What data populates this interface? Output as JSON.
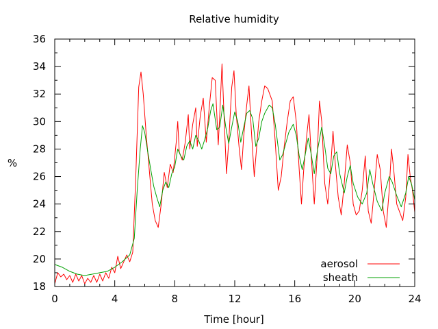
{
  "chart_data": {
    "type": "line",
    "title": "Relative humidity",
    "xlabel": "Time [hour]",
    "ylabel": "%",
    "xlim": [
      0,
      24
    ],
    "ylim": [
      18,
      36
    ],
    "x_ticks": [
      0,
      4,
      8,
      12,
      16,
      20,
      24
    ],
    "y_ticks": [
      18,
      20,
      22,
      24,
      26,
      28,
      30,
      32,
      34,
      36
    ],
    "grid": false,
    "legend_position": "bottom-right",
    "series": [
      {
        "name": "aerosol",
        "color": "#ff0000",
        "points": [
          [
            0.0,
            18.2
          ],
          [
            0.2,
            19.0
          ],
          [
            0.4,
            18.7
          ],
          [
            0.6,
            18.9
          ],
          [
            0.8,
            18.5
          ],
          [
            1.0,
            18.8
          ],
          [
            1.2,
            18.3
          ],
          [
            1.4,
            18.9
          ],
          [
            1.6,
            18.4
          ],
          [
            1.8,
            18.8
          ],
          [
            2.0,
            18.2
          ],
          [
            2.2,
            18.6
          ],
          [
            2.4,
            18.3
          ],
          [
            2.6,
            18.8
          ],
          [
            2.8,
            18.3
          ],
          [
            3.0,
            18.9
          ],
          [
            3.2,
            18.4
          ],
          [
            3.4,
            19.0
          ],
          [
            3.6,
            18.6
          ],
          [
            3.8,
            19.4
          ],
          [
            4.0,
            19.0
          ],
          [
            4.2,
            20.2
          ],
          [
            4.4,
            19.3
          ],
          [
            4.6,
            19.8
          ],
          [
            4.8,
            20.3
          ],
          [
            5.0,
            19.8
          ],
          [
            5.2,
            20.5
          ],
          [
            5.4,
            26.0
          ],
          [
            5.6,
            32.5
          ],
          [
            5.75,
            33.6
          ],
          [
            5.9,
            32.0
          ],
          [
            6.1,
            29.0
          ],
          [
            6.3,
            26.5
          ],
          [
            6.5,
            24.0
          ],
          [
            6.7,
            22.8
          ],
          [
            6.9,
            22.3
          ],
          [
            7.1,
            24.0
          ],
          [
            7.3,
            26.3
          ],
          [
            7.5,
            25.2
          ],
          [
            7.7,
            26.9
          ],
          [
            7.9,
            26.3
          ],
          [
            8.1,
            28.5
          ],
          [
            8.2,
            30.0
          ],
          [
            8.3,
            27.8
          ],
          [
            8.5,
            27.2
          ],
          [
            8.7,
            28.5
          ],
          [
            8.9,
            30.5
          ],
          [
            9.0,
            28.0
          ],
          [
            9.2,
            29.8
          ],
          [
            9.4,
            31.0
          ],
          [
            9.5,
            28.2
          ],
          [
            9.7,
            30.4
          ],
          [
            9.9,
            31.7
          ],
          [
            10.1,
            28.5
          ],
          [
            10.3,
            31.0
          ],
          [
            10.5,
            33.2
          ],
          [
            10.7,
            33.0
          ],
          [
            10.9,
            28.3
          ],
          [
            11.0,
            30.5
          ],
          [
            11.15,
            34.2
          ],
          [
            11.3,
            30.0
          ],
          [
            11.45,
            26.2
          ],
          [
            11.6,
            28.5
          ],
          [
            11.8,
            32.5
          ],
          [
            11.95,
            33.7
          ],
          [
            12.1,
            30.5
          ],
          [
            12.3,
            28.0
          ],
          [
            12.45,
            26.5
          ],
          [
            12.6,
            29.0
          ],
          [
            12.8,
            31.2
          ],
          [
            12.95,
            32.6
          ],
          [
            13.1,
            29.5
          ],
          [
            13.3,
            26.0
          ],
          [
            13.45,
            28.0
          ],
          [
            13.6,
            30.0
          ],
          [
            13.8,
            31.5
          ],
          [
            14.0,
            32.6
          ],
          [
            14.2,
            32.4
          ],
          [
            14.5,
            31.5
          ],
          [
            14.7,
            28.5
          ],
          [
            14.9,
            25.0
          ],
          [
            15.1,
            26.0
          ],
          [
            15.3,
            28.2
          ],
          [
            15.5,
            30.0
          ],
          [
            15.7,
            31.5
          ],
          [
            15.9,
            31.8
          ],
          [
            16.1,
            30.0
          ],
          [
            16.3,
            26.5
          ],
          [
            16.45,
            24.0
          ],
          [
            16.6,
            26.5
          ],
          [
            16.8,
            29.0
          ],
          [
            16.95,
            30.5
          ],
          [
            17.1,
            27.5
          ],
          [
            17.3,
            24.0
          ],
          [
            17.5,
            27.5
          ],
          [
            17.65,
            31.5
          ],
          [
            17.8,
            30.0
          ],
          [
            18.0,
            25.5
          ],
          [
            18.2,
            24.0
          ],
          [
            18.4,
            26.8
          ],
          [
            18.55,
            29.3
          ],
          [
            18.7,
            27.0
          ],
          [
            18.9,
            24.5
          ],
          [
            19.1,
            23.2
          ],
          [
            19.3,
            25.5
          ],
          [
            19.5,
            28.3
          ],
          [
            19.7,
            27.0
          ],
          [
            19.9,
            24.0
          ],
          [
            20.1,
            23.2
          ],
          [
            20.3,
            23.5
          ],
          [
            20.5,
            25.0
          ],
          [
            20.7,
            27.5
          ],
          [
            20.9,
            23.5
          ],
          [
            21.1,
            22.6
          ],
          [
            21.3,
            25.0
          ],
          [
            21.5,
            27.6
          ],
          [
            21.7,
            26.5
          ],
          [
            21.9,
            23.5
          ],
          [
            22.1,
            22.3
          ],
          [
            22.3,
            25.0
          ],
          [
            22.45,
            28.0
          ],
          [
            22.6,
            26.5
          ],
          [
            22.8,
            24.0
          ],
          [
            23.0,
            23.4
          ],
          [
            23.2,
            22.8
          ],
          [
            23.4,
            24.5
          ],
          [
            23.55,
            27.6
          ],
          [
            23.7,
            26.0
          ],
          [
            23.85,
            25.0
          ],
          [
            24.0,
            23.4
          ]
        ]
      },
      {
        "name": "sheath",
        "color": "#00a000",
        "points": [
          [
            0.0,
            19.6
          ],
          [
            0.5,
            19.4
          ],
          [
            1.0,
            19.1
          ],
          [
            1.5,
            18.9
          ],
          [
            2.0,
            18.8
          ],
          [
            2.5,
            18.9
          ],
          [
            3.0,
            19.0
          ],
          [
            3.5,
            19.1
          ],
          [
            4.0,
            19.4
          ],
          [
            4.5,
            19.8
          ],
          [
            5.0,
            20.3
          ],
          [
            5.3,
            21.5
          ],
          [
            5.5,
            25.0
          ],
          [
            5.7,
            28.0
          ],
          [
            5.85,
            29.7
          ],
          [
            6.0,
            29.2
          ],
          [
            6.2,
            27.8
          ],
          [
            6.4,
            26.5
          ],
          [
            6.6,
            25.3
          ],
          [
            6.8,
            24.5
          ],
          [
            7.0,
            23.8
          ],
          [
            7.2,
            25.0
          ],
          [
            7.4,
            25.6
          ],
          [
            7.6,
            25.2
          ],
          [
            7.8,
            26.2
          ],
          [
            8.0,
            26.7
          ],
          [
            8.2,
            28.0
          ],
          [
            8.4,
            27.5
          ],
          [
            8.6,
            27.2
          ],
          [
            8.8,
            28.2
          ],
          [
            9.0,
            28.6
          ],
          [
            9.2,
            28.0
          ],
          [
            9.4,
            29.0
          ],
          [
            9.6,
            28.6
          ],
          [
            9.8,
            28.0
          ],
          [
            10.0,
            28.7
          ],
          [
            10.2,
            29.5
          ],
          [
            10.4,
            30.8
          ],
          [
            10.55,
            31.3
          ],
          [
            10.8,
            29.4
          ],
          [
            11.0,
            29.6
          ],
          [
            11.2,
            31.2
          ],
          [
            11.4,
            29.6
          ],
          [
            11.6,
            28.4
          ],
          [
            11.8,
            29.6
          ],
          [
            12.0,
            30.7
          ],
          [
            12.2,
            30.0
          ],
          [
            12.4,
            28.5
          ],
          [
            12.6,
            29.6
          ],
          [
            12.8,
            30.6
          ],
          [
            13.0,
            30.8
          ],
          [
            13.2,
            30.2
          ],
          [
            13.4,
            28.2
          ],
          [
            13.6,
            28.8
          ],
          [
            13.8,
            30.0
          ],
          [
            14.0,
            30.6
          ],
          [
            14.3,
            31.2
          ],
          [
            14.5,
            31.0
          ],
          [
            14.7,
            29.8
          ],
          [
            15.0,
            27.2
          ],
          [
            15.2,
            27.6
          ],
          [
            15.4,
            28.4
          ],
          [
            15.6,
            29.2
          ],
          [
            15.9,
            29.8
          ],
          [
            16.1,
            29.0
          ],
          [
            16.3,
            27.5
          ],
          [
            16.5,
            26.5
          ],
          [
            16.7,
            27.6
          ],
          [
            16.9,
            28.8
          ],
          [
            17.1,
            27.6
          ],
          [
            17.3,
            26.2
          ],
          [
            17.5,
            27.8
          ],
          [
            17.8,
            29.6
          ],
          [
            18.0,
            28.2
          ],
          [
            18.2,
            26.6
          ],
          [
            18.4,
            26.2
          ],
          [
            18.6,
            27.5
          ],
          [
            18.8,
            27.8
          ],
          [
            19.0,
            26.2
          ],
          [
            19.3,
            24.8
          ],
          [
            19.5,
            26.0
          ],
          [
            19.7,
            26.8
          ],
          [
            19.9,
            25.5
          ],
          [
            20.2,
            24.5
          ],
          [
            20.5,
            24.0
          ],
          [
            20.8,
            24.8
          ],
          [
            21.0,
            26.5
          ],
          [
            21.2,
            25.5
          ],
          [
            21.5,
            24.2
          ],
          [
            21.8,
            23.5
          ],
          [
            22.0,
            24.8
          ],
          [
            22.3,
            26.0
          ],
          [
            22.5,
            25.6
          ],
          [
            22.8,
            24.6
          ],
          [
            23.1,
            23.8
          ],
          [
            23.4,
            24.8
          ],
          [
            23.6,
            26.0
          ],
          [
            23.8,
            25.4
          ],
          [
            24.0,
            24.3
          ]
        ]
      }
    ]
  }
}
